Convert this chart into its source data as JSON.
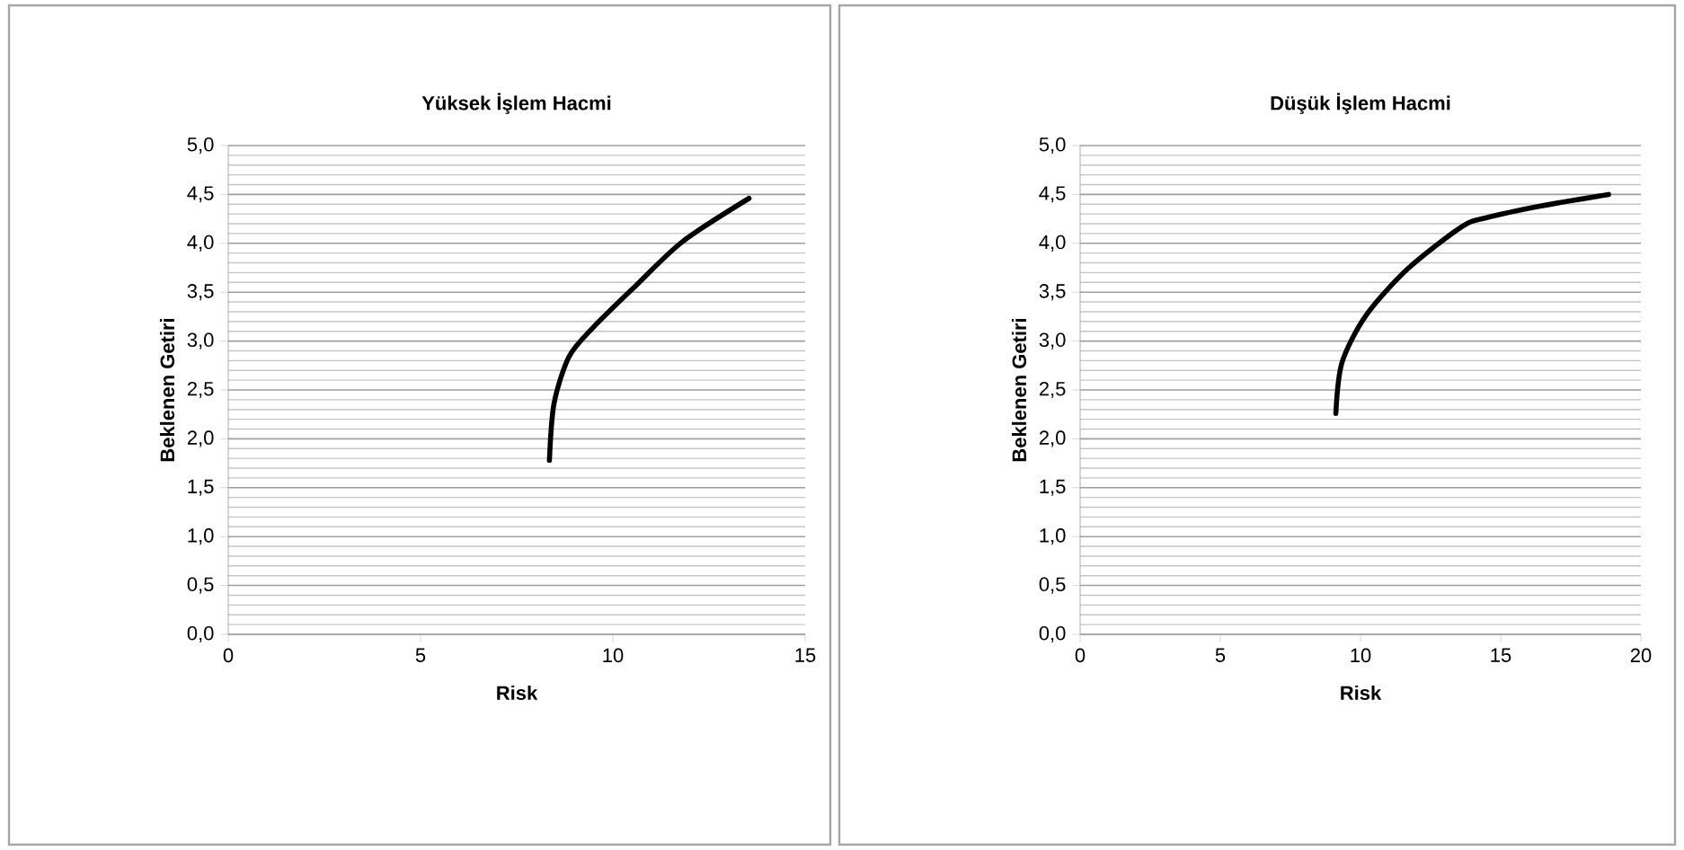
{
  "chart_data": [
    {
      "type": "line",
      "title": "Yüksek İşlem Hacmi",
      "xlabel": "Risk",
      "ylabel": "Beklenen Getiri",
      "series": [
        {
          "color": "#000000",
          "x": [
            8.35,
            8.47,
            8.86,
            9.49,
            10.58,
            11.82,
            13.54
          ],
          "values": [
            1.78,
            2.36,
            2.84,
            3.14,
            3.56,
            4.02,
            4.46
          ]
        }
      ],
      "xlim": [
        0,
        15
      ],
      "xticks": [
        0,
        5,
        10,
        15
      ],
      "ylim": [
        0,
        5
      ],
      "yticks": [
        {
          "value": 0,
          "label": "0,0"
        },
        {
          "value": 0.5,
          "label": "0,5"
        },
        {
          "value": 1,
          "label": "1,0"
        },
        {
          "value": 1.5,
          "label": "1,5"
        },
        {
          "value": 2,
          "label": "2,0"
        },
        {
          "value": 2.5,
          "label": "2,5"
        },
        {
          "value": 3,
          "label": "3,0"
        },
        {
          "value": 3.5,
          "label": "3,5"
        },
        {
          "value": 4,
          "label": "4,0"
        },
        {
          "value": 4.5,
          "label": "4,5"
        },
        {
          "value": 5,
          "label": "5,0"
        }
      ],
      "grid": "y"
    },
    {
      "type": "line",
      "title": "Düşük İşlem Hacmi",
      "xlabel": "Risk",
      "ylabel": "Beklenen Getiri",
      "series": [
        {
          "color": "#000000",
          "x": [
            9.12,
            9.34,
            10.19,
            11.69,
            13.61,
            14.47,
            16.39,
            18.85
          ],
          "values": [
            2.26,
            2.78,
            3.26,
            3.74,
            4.17,
            4.26,
            4.38,
            4.5
          ]
        }
      ],
      "xlim": [
        0,
        20
      ],
      "xticks": [
        0,
        5,
        10,
        15,
        20
      ],
      "ylim": [
        0,
        5
      ],
      "yticks": [
        {
          "value": 0,
          "label": "0,0"
        },
        {
          "value": 0.5,
          "label": "0,5"
        },
        {
          "value": 1,
          "label": "1,0"
        },
        {
          "value": 1.5,
          "label": "1,5"
        },
        {
          "value": 2,
          "label": "2,0"
        },
        {
          "value": 2.5,
          "label": "2,5"
        },
        {
          "value": 3,
          "label": "3,0"
        },
        {
          "value": 3.5,
          "label": "3,5"
        },
        {
          "value": 4,
          "label": "4,0"
        },
        {
          "value": 4.5,
          "label": "4,5"
        },
        {
          "value": 5,
          "label": "5,0"
        }
      ],
      "grid": "y"
    }
  ]
}
